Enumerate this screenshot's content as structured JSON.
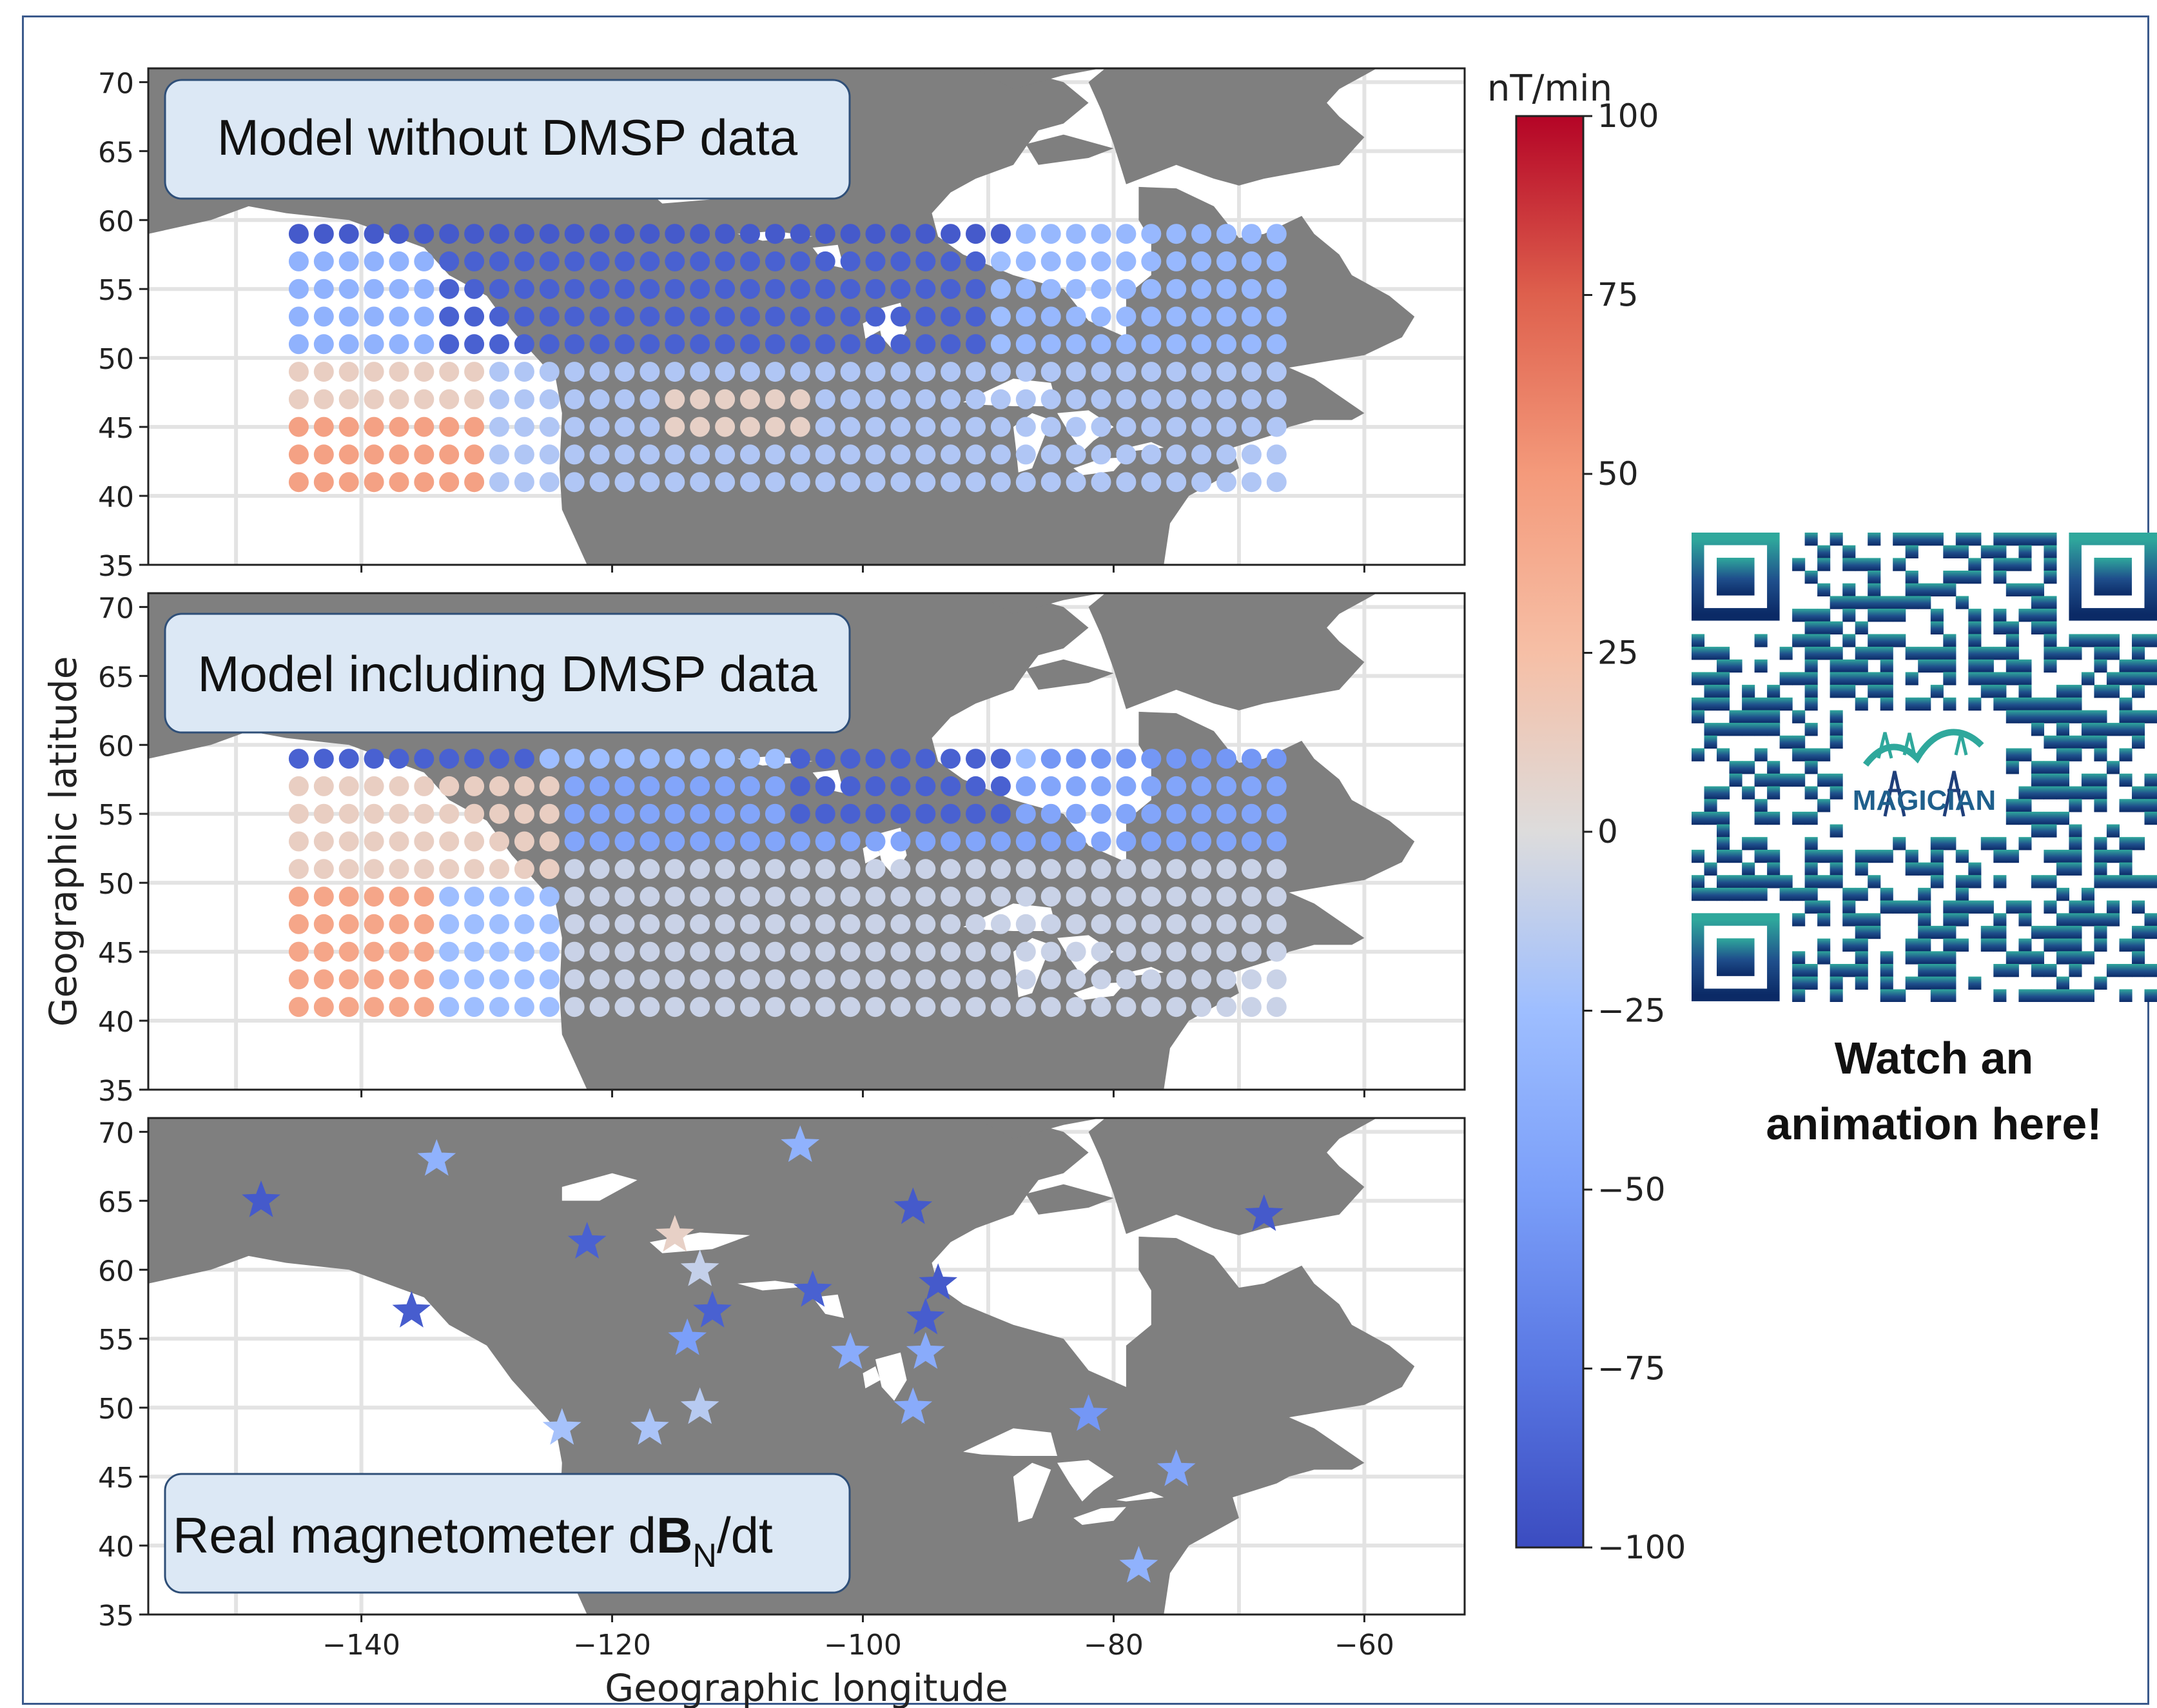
{
  "colorbar": {
    "unit": "nT/min",
    "min": -100,
    "max": 100,
    "ticks": [
      100,
      75,
      50,
      25,
      0,
      -25,
      -50,
      -75,
      -100
    ],
    "tick_labels": [
      "100",
      "75",
      "50",
      "25",
      "0",
      "−25",
      "−50",
      "−75",
      "−100"
    ],
    "colormap": "coolwarm"
  },
  "axes": {
    "xlabel": "Geographic longitude",
    "ylabel": "Geographic latitude",
    "xlim": [
      -157,
      -52
    ],
    "ylim": [
      35,
      71
    ],
    "xticks": [
      -140,
      -120,
      -100,
      -80,
      -60
    ],
    "xtick_labels": [
      "−140",
      "−120",
      "−100",
      "−80",
      "−60"
    ],
    "yticks": [
      35,
      40,
      45,
      50,
      55,
      60,
      65,
      70
    ],
    "ytick_labels": [
      "35",
      "40",
      "45",
      "50",
      "55",
      "60",
      "65",
      "70"
    ],
    "grid": true
  },
  "chart_data": [
    {
      "type": "scatter",
      "panel_label": "Model without DMSP data",
      "grid_lon": [
        -145,
        -66,
        2
      ],
      "grid_lat": [
        41,
        59,
        2
      ],
      "marker": "circle",
      "value_field": "dBN/dt model estimate (estimated)",
      "blocks": [
        {
          "lon": [
            -145,
            -131
          ],
          "lat": [
            41,
            45
          ],
          "value": 45
        },
        {
          "lon": [
            -145,
            -131
          ],
          "lat": [
            47,
            49
          ],
          "value": 12
        },
        {
          "lon": [
            -145,
            -131
          ],
          "lat": [
            51,
            57
          ],
          "value": -35
        },
        {
          "lon": [
            -133,
            -90
          ],
          "lat": [
            51,
            57
          ],
          "value": -88
        },
        {
          "lon": [
            -145,
            -88
          ],
          "lat": [
            59,
            59
          ],
          "value": -92
        },
        {
          "lon": [
            -129,
            -66
          ],
          "lat": [
            41,
            49
          ],
          "value": -18
        },
        {
          "lon": [
            -116,
            -104
          ],
          "lat": [
            45,
            47
          ],
          "value": 10
        },
        {
          "lon": [
            -88,
            -66
          ],
          "lat": [
            51,
            59
          ],
          "value": -30
        }
      ]
    },
    {
      "type": "scatter",
      "panel_label": "Model including DMSP data",
      "grid_lon": [
        -145,
        -66,
        2
      ],
      "grid_lat": [
        41,
        59,
        2
      ],
      "marker": "circle",
      "value_field": "dBN/dt model estimate (estimated)",
      "blocks": [
        {
          "lon": [
            -145,
            -135
          ],
          "lat": [
            41,
            49
          ],
          "value": 42
        },
        {
          "lon": [
            -145,
            -125
          ],
          "lat": [
            51,
            57
          ],
          "value": 12
        },
        {
          "lon": [
            -145,
            -127
          ],
          "lat": [
            59,
            59
          ],
          "value": -88
        },
        {
          "lon": [
            -123,
            -66
          ],
          "lat": [
            41,
            51
          ],
          "value": -8
        },
        {
          "lon": [
            -123,
            -66
          ],
          "lat": [
            53,
            57
          ],
          "value": -45
        },
        {
          "lon": [
            -106,
            -88
          ],
          "lat": [
            55,
            59
          ],
          "value": -88
        },
        {
          "lon": [
            -86,
            -66
          ],
          "lat": [
            59,
            59
          ],
          "value": -55
        }
      ]
    },
    {
      "type": "scatter",
      "panel_label_parts": [
        "Real magnetometer d",
        "B",
        "N",
        "/dt"
      ],
      "marker": "star",
      "value_field": "measured dBN/dt (estimated)",
      "points": [
        {
          "lon": -148,
          "lat": 65,
          "value": -92
        },
        {
          "lon": -134,
          "lat": 68,
          "value": -35
        },
        {
          "lon": -136,
          "lat": 57,
          "value": -90
        },
        {
          "lon": -122,
          "lat": 62,
          "value": -88
        },
        {
          "lon": -115,
          "lat": 62.5,
          "value": 10
        },
        {
          "lon": -113,
          "lat": 60,
          "value": -10
        },
        {
          "lon": -112,
          "lat": 57,
          "value": -88
        },
        {
          "lon": -114,
          "lat": 55,
          "value": -50
        },
        {
          "lon": -105,
          "lat": 69,
          "value": -35
        },
        {
          "lon": -104,
          "lat": 58.5,
          "value": -88
        },
        {
          "lon": -101,
          "lat": 54,
          "value": -40
        },
        {
          "lon": -96,
          "lat": 64.5,
          "value": -92
        },
        {
          "lon": -94,
          "lat": 59,
          "value": -92
        },
        {
          "lon": -95,
          "lat": 56.5,
          "value": -90
        },
        {
          "lon": -95,
          "lat": 54,
          "value": -40
        },
        {
          "lon": -96,
          "lat": 50,
          "value": -40
        },
        {
          "lon": -113,
          "lat": 50,
          "value": -15
        },
        {
          "lon": -117,
          "lat": 48.5,
          "value": -20
        },
        {
          "lon": -124,
          "lat": 48.5,
          "value": -22
        },
        {
          "lon": -82,
          "lat": 49.5,
          "value": -55
        },
        {
          "lon": -75,
          "lat": 45.5,
          "value": -45
        },
        {
          "lon": -78,
          "lat": 38.5,
          "value": -35
        },
        {
          "lon": -68,
          "lat": 64,
          "value": -92
        }
      ]
    }
  ],
  "qr": {
    "logo_text": "MAGICIAN",
    "caption_lines": [
      "Watch an",
      "animation here!"
    ],
    "colors": [
      "#2fa89c",
      "#1f4f8c",
      "#0b2a66"
    ]
  }
}
